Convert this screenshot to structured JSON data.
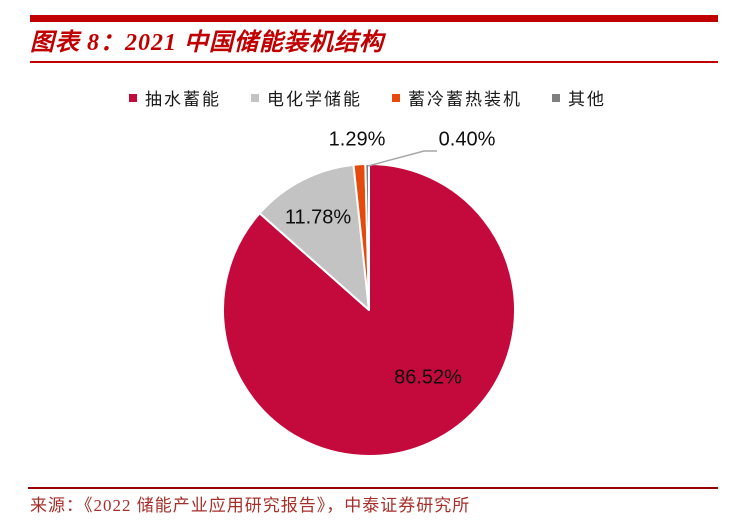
{
  "header": {
    "title": "图表 8：2021 中国储能装机结构"
  },
  "footer": {
    "source": "来源：《2022 储能产业应用研究报告》，中泰证券研究所"
  },
  "colors": {
    "title_red": "#C00000",
    "title_rule_red": "#C00000",
    "footer_rule_red": "#990000",
    "source_text_red": "#A52F2A",
    "leader_line_gray": "#A6A6A6",
    "label_text": "#0d0d0d"
  },
  "chart_data": {
    "type": "pie",
    "title": "2021 中国储能装机结构",
    "start_angle_deg": 0,
    "direction": "clockwise",
    "legend_position": "top",
    "slices": [
      {
        "label": "抽水蓄能",
        "value": 86.52,
        "display": "86.52%",
        "color": "#C40A3C"
      },
      {
        "label": "电化学储能",
        "value": 11.78,
        "display": "11.78%",
        "color": "#C3C3C3"
      },
      {
        "label": "蓄冷蓄热装机",
        "value": 1.29,
        "display": "1.29%",
        "color": "#E6490C"
      },
      {
        "label": "其他",
        "value": 0.4,
        "display": "0.40%",
        "color": "#7F7F7F"
      }
    ]
  }
}
